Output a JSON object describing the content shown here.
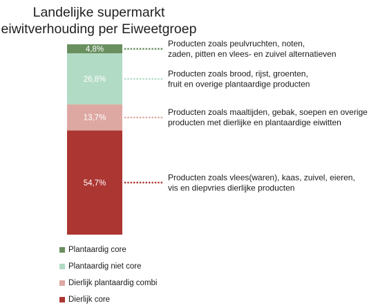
{
  "chart_data": {
    "type": "bar",
    "stacked": true,
    "title": [
      "Landelijke supermarkt",
      "eiwitverhouding per Eiweetgroep"
    ],
    "ylim": [
      0,
      100
    ],
    "series": [
      {
        "name": "Plantaardig core",
        "value": 4.8,
        "label": "4,8%",
        "color": "#6a8f5f",
        "annotation": [
          "Producten zoals peulvruchten, noten,",
          "zaden, pitten en vlees- en zuivel alternatieven"
        ]
      },
      {
        "name": "Plantaardig niet core",
        "value": 26.8,
        "label": "26,8%",
        "color": "#b2dbc5",
        "annotation": [
          "Producten zoals brood, rijst, groenten,",
          "fruit en overige plantaardige producten"
        ]
      },
      {
        "name": "Dierlijk plantaardig combi",
        "value": 13.7,
        "label": "13,7%",
        "color": "#dea8a2",
        "annotation": [
          "Producten zoals maaltijden, gebak, soepen en overige",
          "producten met dierlijke en plantaardige eiwitten"
        ]
      },
      {
        "name": "Dierlijk core",
        "value": 54.7,
        "label": "54,7%",
        "color": "#ac3632",
        "annotation": [
          "Producten zoals vlees(waren), kaas, zuivel, eieren,",
          "vis en diepvries dierlijke producten"
        ]
      }
    ],
    "legend_position": "bottom-left",
    "grid": false
  }
}
